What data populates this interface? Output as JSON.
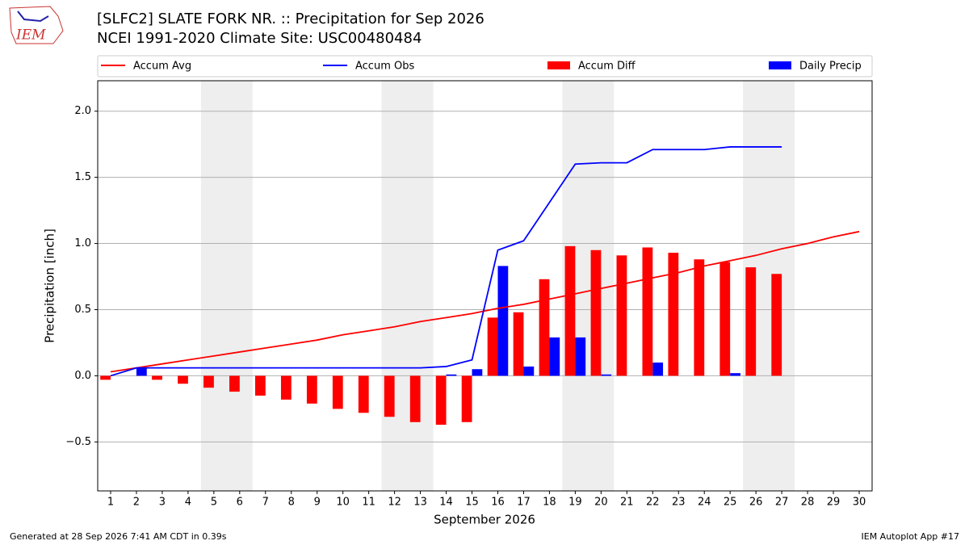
{
  "chart_data": {
    "type": "bar",
    "title": "[SLFC2] SLATE FORK NR. :: Precipitation for Sep 2026",
    "subtitle": "NCEI 1991-2020 Climate Site: USC00480484",
    "logo_text": "IEM",
    "x_label": "September 2026",
    "y_label": "Precipitation [inch]",
    "footer_left": "Generated at 28 Sep 2026 7:41 AM CDT in 0.39s",
    "footer_right": "IEM Autoplot App #17",
    "x": [
      1,
      2,
      3,
      4,
      5,
      6,
      7,
      8,
      9,
      10,
      11,
      12,
      13,
      14,
      15,
      16,
      17,
      18,
      19,
      20,
      21,
      22,
      23,
      24,
      25,
      26,
      27,
      28,
      29,
      30
    ],
    "xlim": [
      0.5,
      30.5
    ],
    "xticks": [
      1,
      2,
      3,
      4,
      5,
      6,
      7,
      8,
      9,
      10,
      11,
      12,
      13,
      14,
      15,
      16,
      17,
      18,
      19,
      20,
      21,
      22,
      23,
      24,
      25,
      26,
      27,
      28,
      29,
      30
    ],
    "ylim": [
      -0.87,
      2.23
    ],
    "yticks": [
      {
        "value": -0.5,
        "label": "−0.5"
      },
      {
        "value": 0,
        "label": "0.0"
      },
      0.5,
      {
        "value": 1,
        "label": "1.0"
      },
      1.5,
      {
        "value": 2,
        "label": "2.0"
      }
    ],
    "grid": true,
    "shaded_spans": [
      [
        4.5,
        6.5
      ],
      [
        11.5,
        13.5
      ],
      [
        18.5,
        20.5
      ],
      [
        25.5,
        27.5
      ]
    ],
    "shade_color": "#eeeeee",
    "series": [
      {
        "name": "Accum Avg",
        "kind": "line",
        "color": "#ff0000",
        "values": [
          0.03,
          0.06,
          0.09,
          0.12,
          0.15,
          0.18,
          0.21,
          0.24,
          0.27,
          0.31,
          0.34,
          0.37,
          0.41,
          0.44,
          0.47,
          0.51,
          0.54,
          0.58,
          0.62,
          0.66,
          0.7,
          0.74,
          0.78,
          0.83,
          0.87,
          0.91,
          0.96,
          1.0,
          1.05,
          1.09
        ]
      },
      {
        "name": "Accum Obs",
        "kind": "line",
        "color": "#0000ff",
        "values": [
          0.0,
          0.06,
          0.06,
          0.06,
          0.06,
          0.06,
          0.06,
          0.06,
          0.06,
          0.06,
          0.06,
          0.06,
          0.06,
          0.07,
          0.12,
          0.95,
          1.02,
          1.31,
          1.6,
          1.61,
          1.61,
          1.71,
          1.71,
          1.71,
          1.73,
          1.73,
          1.73,
          null,
          null,
          null
        ]
      },
      {
        "name": "Accum Diff",
        "kind": "bar",
        "color": "#ff0000",
        "offset": -0.2,
        "values": [
          -0.03,
          0.0,
          -0.03,
          -0.06,
          -0.09,
          -0.12,
          -0.15,
          -0.18,
          -0.21,
          -0.25,
          -0.28,
          -0.31,
          -0.35,
          -0.37,
          -0.35,
          0.44,
          0.48,
          0.73,
          0.98,
          0.95,
          0.91,
          0.97,
          0.93,
          0.88,
          0.86,
          0.82,
          0.77,
          null,
          null,
          null
        ]
      },
      {
        "name": "Daily Precip",
        "kind": "bar",
        "color": "#0000ff",
        "offset": 0.2,
        "values": [
          0,
          0.06,
          0,
          0,
          0,
          0,
          0,
          0,
          0,
          0,
          0,
          0,
          0,
          0.01,
          0.05,
          0.83,
          0.07,
          0.29,
          0.29,
          0.01,
          0,
          0.1,
          0,
          0,
          0.02,
          0,
          0,
          null,
          null,
          null
        ]
      }
    ]
  }
}
